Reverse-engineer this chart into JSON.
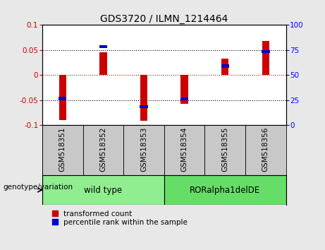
{
  "title": "GDS3720 / ILMN_1214464",
  "samples": [
    "GSM518351",
    "GSM518352",
    "GSM518353",
    "GSM518354",
    "GSM518355",
    "GSM518356"
  ],
  "red_bars": [
    -0.09,
    0.045,
    -0.092,
    -0.057,
    0.033,
    0.068
  ],
  "blue_markers": [
    -0.047,
    0.057,
    -0.063,
    -0.048,
    0.018,
    0.047
  ],
  "ylim": [
    -0.1,
    0.1
  ],
  "y2lim": [
    0,
    100
  ],
  "yticks_left": [
    -0.1,
    -0.05,
    0,
    0.05,
    0.1
  ],
  "yticks_right": [
    0,
    25,
    50,
    75,
    100
  ],
  "groups": [
    {
      "label": "wild type",
      "indices": [
        0,
        1,
        2
      ],
      "color": "#90EE90"
    },
    {
      "label": "RORalpha1delDE",
      "indices": [
        3,
        4,
        5
      ],
      "color": "#66DD66"
    }
  ],
  "group_label": "genotype/variation",
  "bar_color": "#CC0000",
  "marker_color": "#0000CC",
  "background_color": "#E8E8E8",
  "cell_color": "#C8C8C8",
  "plot_bg": "#FFFFFF",
  "title_fontsize": 10,
  "tick_fontsize": 7.5,
  "label_fontsize": 7.5,
  "legend_fontsize": 7.5,
  "group_fontsize": 8.5
}
